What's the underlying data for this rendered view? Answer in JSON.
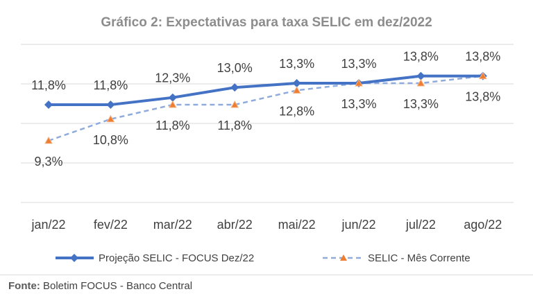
{
  "chart_data": {
    "type": "line",
    "title": "Gráfico 2: Expectativas para taxa SELIC em dez/2022",
    "categories": [
      "jan/22",
      "fev/22",
      "mar/22",
      "abr/22",
      "mai/22",
      "jun/22",
      "jul/22",
      "ago/22"
    ],
    "series": [
      {
        "name": "Projeção SELIC - FOCUS Dez/22",
        "values": [
          11.8,
          11.8,
          12.3,
          13.0,
          13.3,
          13.3,
          13.8,
          13.8
        ],
        "labels": [
          "11,8%",
          "11,8%",
          "12,3%",
          "13,0%",
          "13,3%",
          "13,3%",
          "13,8%",
          "13,8%"
        ],
        "color": "#4472c4",
        "style": "solid",
        "marker": "diamond"
      },
      {
        "name": "SELIC - Mês Corrente",
        "values": [
          9.3,
          10.8,
          11.8,
          11.8,
          12.8,
          13.3,
          13.3,
          13.8
        ],
        "labels": [
          "9,3%",
          "10,8%",
          "11,8%",
          "11,8%",
          "12,8%",
          "13,3%",
          "13,3%",
          "13,8%"
        ],
        "color": "#8faadc",
        "style": "dashed",
        "marker": "triangle",
        "marker_color": "#ed7d31"
      }
    ],
    "ylim": [
      5,
      16
    ],
    "grid": true,
    "legend": "bottom"
  },
  "source": {
    "label": "Fonte:",
    "text": "Boletim FOCUS - Banco Central"
  }
}
